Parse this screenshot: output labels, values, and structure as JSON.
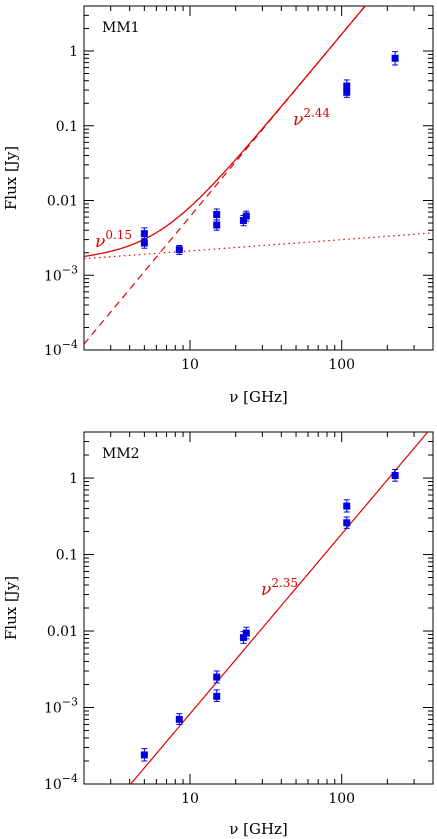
{
  "colors": {
    "model": "#e00000",
    "data": "#0000e0",
    "axes": "#000000"
  },
  "chart_data": [
    {
      "type": "scatter",
      "panel_label": "MM1",
      "xlabel": "ν [GHz]",
      "ylabel": "Flux [Jy]",
      "xscale": "log",
      "yscale": "log",
      "xlim": [
        2,
        400
      ],
      "ylim": [
        0.0001,
        4
      ],
      "x_ticks": [
        {
          "v": 10,
          "t": "10"
        },
        {
          "v": 100,
          "t": "100"
        }
      ],
      "y_ticks": [
        {
          "v": 0.0001,
          "b": "10",
          "e": "−4"
        },
        {
          "v": 0.001,
          "b": "10",
          "e": "−3"
        },
        {
          "v": 0.01,
          "t": "0.01"
        },
        {
          "v": 0.1,
          "t": "0.1"
        },
        {
          "v": 1,
          "t": "1"
        }
      ],
      "points": [
        {
          "x": 5.0,
          "y": 0.0036,
          "err": [
            0.0006,
            0.0007
          ]
        },
        {
          "x": 5.0,
          "y": 0.0027,
          "err": [
            0.0004,
            0.0004
          ]
        },
        {
          "x": 8.5,
          "y": 0.0022,
          "err": [
            0.0003,
            0.0003
          ]
        },
        {
          "x": 15.0,
          "y": 0.0065,
          "err": [
            0.001,
            0.0012
          ]
        },
        {
          "x": 15.0,
          "y": 0.0047,
          "err": [
            0.0007,
            0.0008
          ]
        },
        {
          "x": 22.5,
          "y": 0.0054,
          "err": [
            0.0008,
            0.0009
          ]
        },
        {
          "x": 23.5,
          "y": 0.0062,
          "err": [
            0.0009,
            0.001
          ]
        },
        {
          "x": 108,
          "y": 0.34,
          "err": [
            0.05,
            0.07
          ]
        },
        {
          "x": 108,
          "y": 0.28,
          "err": [
            0.04,
            0.05
          ]
        },
        {
          "x": 225,
          "y": 0.8,
          "err": [
            0.15,
            0.18
          ]
        }
      ],
      "components": [
        {
          "style": "dotted",
          "amp": 0.0015,
          "index": 0.15,
          "label_base": "ν",
          "label_exp": "0.15"
        },
        {
          "style": "dashed",
          "amp": 2.21e-05,
          "index": 2.44,
          "label_base": "ν",
          "label_exp": "2.44"
        }
      ],
      "sum_curve": true
    },
    {
      "type": "scatter",
      "panel_label": "MM2",
      "xlabel": "ν [GHz]",
      "ylabel": "Flux [Jy]",
      "xscale": "log",
      "yscale": "log",
      "xlim": [
        2,
        400
      ],
      "ylim": [
        0.0001,
        4
      ],
      "x_ticks": [
        {
          "v": 10,
          "t": "10"
        },
        {
          "v": 100,
          "t": "100"
        }
      ],
      "y_ticks": [
        {
          "v": 0.0001,
          "b": "10",
          "e": "−4"
        },
        {
          "v": 0.001,
          "b": "10",
          "e": "−3"
        },
        {
          "v": 0.01,
          "t": "0.01"
        },
        {
          "v": 0.1,
          "t": "0.1"
        },
        {
          "v": 1,
          "t": "1"
        }
      ],
      "points": [
        {
          "x": 5.0,
          "y": 0.00024,
          "err": [
            4e-05,
            5e-05
          ]
        },
        {
          "x": 8.5,
          "y": 0.0007,
          "err": [
            0.0001,
            0.00013
          ]
        },
        {
          "x": 15.0,
          "y": 0.0025,
          "err": [
            0.0004,
            0.0005
          ]
        },
        {
          "x": 15.0,
          "y": 0.0014,
          "err": [
            0.0002,
            0.0003
          ]
        },
        {
          "x": 22.5,
          "y": 0.0082,
          "err": [
            0.0013,
            0.0016
          ]
        },
        {
          "x": 23.5,
          "y": 0.0094,
          "err": [
            0.0015,
            0.0018
          ]
        },
        {
          "x": 108,
          "y": 0.43,
          "err": [
            0.07,
            0.09
          ]
        },
        {
          "x": 108,
          "y": 0.26,
          "err": [
            0.04,
            0.05
          ]
        },
        {
          "x": 225,
          "y": 1.08,
          "err": [
            0.17,
            0.21
          ]
        }
      ],
      "components": [
        {
          "style": "solid",
          "amp": 3.7e-06,
          "index": 2.35,
          "label_base": "ν",
          "label_exp": "2.35"
        }
      ],
      "sum_curve": false
    }
  ]
}
